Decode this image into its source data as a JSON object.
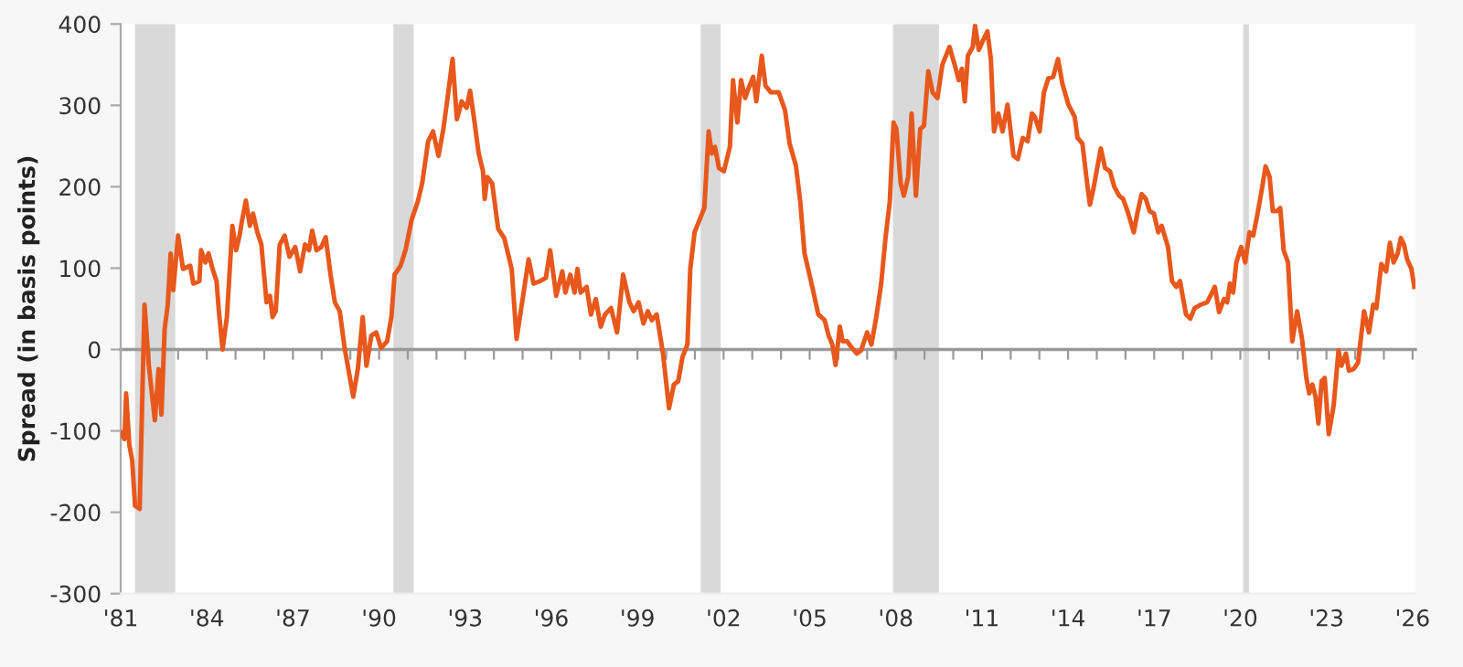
{
  "chart_data": {
    "type": "line",
    "ylabel": "Spread (in basis points)",
    "xlim": [
      1981,
      2026.1
    ],
    "ylim": [
      -300,
      400
    ],
    "yticks": [
      -300,
      -200,
      -100,
      0,
      100,
      200,
      300,
      400
    ],
    "xticks": [
      {
        "value": 1981,
        "label": "'81"
      },
      {
        "value": 1982,
        "label": null
      },
      {
        "value": 1983,
        "label": null
      },
      {
        "value": 1984,
        "label": "'84"
      },
      {
        "value": 1985,
        "label": null
      },
      {
        "value": 1986,
        "label": null
      },
      {
        "value": 1987,
        "label": "'87"
      },
      {
        "value": 1988,
        "label": null
      },
      {
        "value": 1989,
        "label": null
      },
      {
        "value": 1990,
        "label": "'90"
      },
      {
        "value": 1991,
        "label": null
      },
      {
        "value": 1992,
        "label": null
      },
      {
        "value": 1993,
        "label": "'93"
      },
      {
        "value": 1994,
        "label": null
      },
      {
        "value": 1995,
        "label": null
      },
      {
        "value": 1996,
        "label": "'96"
      },
      {
        "value": 1997,
        "label": null
      },
      {
        "value": 1998,
        "label": null
      },
      {
        "value": 1999,
        "label": "'99"
      },
      {
        "value": 2000,
        "label": null
      },
      {
        "value": 2001,
        "label": null
      },
      {
        "value": 2002,
        "label": "'02"
      },
      {
        "value": 2003,
        "label": null
      },
      {
        "value": 2004,
        "label": null
      },
      {
        "value": 2005,
        "label": "'05"
      },
      {
        "value": 2006,
        "label": null
      },
      {
        "value": 2007,
        "label": null
      },
      {
        "value": 2008,
        "label": "'08"
      },
      {
        "value": 2009,
        "label": null
      },
      {
        "value": 2010,
        "label": null
      },
      {
        "value": 2011,
        "label": "'11"
      },
      {
        "value": 2012,
        "label": null
      },
      {
        "value": 2013,
        "label": null
      },
      {
        "value": 2014,
        "label": "'14"
      },
      {
        "value": 2015,
        "label": null
      },
      {
        "value": 2016,
        "label": null
      },
      {
        "value": 2017,
        "label": "'17"
      },
      {
        "value": 2018,
        "label": null
      },
      {
        "value": 2019,
        "label": null
      },
      {
        "value": 2020,
        "label": "'20"
      },
      {
        "value": 2021,
        "label": null
      },
      {
        "value": 2022,
        "label": null
      },
      {
        "value": 2023,
        "label": "'23"
      },
      {
        "value": 2024,
        "label": null
      },
      {
        "value": 2025,
        "label": null
      },
      {
        "value": 2026,
        "label": "'26"
      }
    ],
    "bands": [
      {
        "axis": "x",
        "from": 1981.5,
        "to": 1982.9,
        "color": "#d9d9d9"
      },
      {
        "axis": "x",
        "from": 1990.5,
        "to": 1991.2,
        "color": "#d9d9d9"
      },
      {
        "axis": "x",
        "from": 2001.2,
        "to": 2001.9,
        "color": "#d9d9d9"
      },
      {
        "axis": "x",
        "from": 2007.9,
        "to": 2009.5,
        "color": "#d9d9d9"
      },
      {
        "axis": "x",
        "from": 2020.1,
        "to": 2020.3,
        "color": "#d9d9d9"
      }
    ],
    "ref_lines": [
      {
        "axis": "y",
        "value": 0,
        "color": "#999999"
      }
    ],
    "grid": false,
    "legend": false,
    "marker": "none",
    "line_style": "solid",
    "series": [
      {
        "color": "#e8581c",
        "x": [
          1981.0,
          1981.13,
          1981.19,
          1981.3,
          1981.4,
          1981.5,
          1981.66,
          1981.83,
          1981.98,
          1982.19,
          1982.32,
          1982.42,
          1982.53,
          1982.64,
          1982.74,
          1982.83,
          1983.0,
          1983.17,
          1983.42,
          1983.53,
          1983.74,
          1983.8,
          1983.95,
          1984.06,
          1984.2,
          1984.34,
          1984.42,
          1984.55,
          1984.7,
          1984.89,
          1985.02,
          1985.14,
          1985.23,
          1985.36,
          1985.5,
          1985.61,
          1985.76,
          1985.9,
          1986.08,
          1986.2,
          1986.29,
          1986.4,
          1986.54,
          1986.71,
          1986.88,
          1987.08,
          1987.25,
          1987.42,
          1987.56,
          1987.67,
          1987.82,
          1987.99,
          1988.14,
          1988.31,
          1988.46,
          1988.63,
          1988.8,
          1988.95,
          1989.1,
          1989.26,
          1989.43,
          1989.56,
          1989.73,
          1989.9,
          1990.07,
          1990.28,
          1990.43,
          1990.54,
          1990.75,
          1990.92,
          1991.13,
          1991.35,
          1991.5,
          1991.71,
          1991.88,
          1992.07,
          1992.24,
          1992.37,
          1992.56,
          1992.71,
          1992.88,
          1993.05,
          1993.17,
          1993.3,
          1993.47,
          1993.62,
          1993.68,
          1993.77,
          1993.94,
          1994.15,
          1994.36,
          1994.62,
          1994.79,
          1995.0,
          1995.21,
          1995.38,
          1995.6,
          1995.81,
          1995.96,
          1996.17,
          1996.38,
          1996.49,
          1996.66,
          1996.81,
          1996.91,
          1997.02,
          1997.23,
          1997.38,
          1997.55,
          1997.72,
          1997.87,
          1998.08,
          1998.29,
          1998.5,
          1998.72,
          1998.87,
          1999.04,
          1999.21,
          1999.36,
          1999.5,
          1999.67,
          1999.89,
          2000.1,
          2000.27,
          2000.42,
          2000.57,
          2000.74,
          2000.84,
          2000.99,
          2001.16,
          2001.33,
          2001.48,
          2001.59,
          2001.7,
          2001.84,
          2002.01,
          2002.22,
          2002.33,
          2002.48,
          2002.61,
          2002.75,
          2002.86,
          2003.03,
          2003.14,
          2003.33,
          2003.46,
          2003.65,
          2003.92,
          2004.14,
          2004.3,
          2004.52,
          2004.67,
          2004.82,
          2005.09,
          2005.3,
          2005.52,
          2005.66,
          2005.79,
          2005.9,
          2006.05,
          2006.15,
          2006.3,
          2006.47,
          2006.64,
          2006.79,
          2007.0,
          2007.15,
          2007.32,
          2007.49,
          2007.64,
          2007.79,
          2007.92,
          2008.02,
          2008.17,
          2008.28,
          2008.43,
          2008.55,
          2008.7,
          2008.85,
          2008.98,
          2009.13,
          2009.28,
          2009.45,
          2009.62,
          2009.87,
          2010.08,
          2010.19,
          2010.3,
          2010.4,
          2010.51,
          2010.68,
          2010.76,
          2010.89,
          2011.04,
          2011.19,
          2011.31,
          2011.42,
          2011.57,
          2011.72,
          2011.89,
          2012.1,
          2012.25,
          2012.42,
          2012.59,
          2012.74,
          2012.84,
          2013.01,
          2013.16,
          2013.31,
          2013.48,
          2013.65,
          2013.8,
          2014.01,
          2014.23,
          2014.33,
          2014.5,
          2014.65,
          2014.76,
          2014.88,
          2015.03,
          2015.14,
          2015.29,
          2015.46,
          2015.61,
          2015.78,
          2015.92,
          2016.07,
          2016.29,
          2016.41,
          2016.56,
          2016.71,
          2016.84,
          2016.99,
          2017.14,
          2017.26,
          2017.48,
          2017.62,
          2017.77,
          2017.9,
          2017.99,
          2018.11,
          2018.26,
          2018.41,
          2018.62,
          2018.84,
          2018.96,
          2019.11,
          2019.26,
          2019.43,
          2019.54,
          2019.64,
          2019.75,
          2019.86,
          2020.03,
          2020.17,
          2020.32,
          2020.45,
          2020.6,
          2020.75,
          2020.88,
          2021.02,
          2021.13,
          2021.28,
          2021.39,
          2021.51,
          2021.66,
          2021.81,
          2021.98,
          2022.15,
          2022.3,
          2022.4,
          2022.51,
          2022.62,
          2022.72,
          2022.83,
          2022.94,
          2023.08,
          2023.25,
          2023.42,
          2023.52,
          2023.68,
          2023.78,
          2023.95,
          2024.1,
          2024.31,
          2024.48,
          2024.63,
          2024.74,
          2024.91,
          2025.08,
          2025.21,
          2025.34,
          2025.48,
          2025.59,
          2025.7,
          2025.81,
          2025.96,
          2026.06
        ],
        "values": [
          -102,
          -110,
          -54,
          -117,
          -136,
          -192,
          -196,
          55,
          -20,
          -87,
          -24,
          -80,
          25,
          55,
          118,
          73,
          140,
          99,
          103,
          81,
          84,
          122,
          107,
          118,
          99,
          84,
          47,
          0,
          40,
          152,
          122,
          140,
          159,
          183,
          152,
          167,
          144,
          129,
          58,
          66,
          40,
          47,
          129,
          140,
          114,
          126,
          96,
          129,
          122,
          146,
          122,
          126,
          138,
          92,
          58,
          47,
          2,
          -28,
          -58,
          -24,
          40,
          -20,
          17,
          21,
          2,
          10,
          40,
          92,
          103,
          122,
          159,
          182,
          204,
          256,
          268,
          238,
          271,
          305,
          357,
          283,
          305,
          297,
          318,
          286,
          241,
          219,
          185,
          212,
          204,
          148,
          137,
          99,
          13,
          62,
          111,
          81,
          84,
          88,
          122,
          66,
          96,
          70,
          92,
          70,
          99,
          70,
          77,
          43,
          62,
          28,
          43,
          51,
          21,
          92,
          58,
          47,
          58,
          32,
          47,
          36,
          43,
          -5,
          -72,
          -43,
          -39,
          -9,
          6,
          99,
          144,
          159,
          174,
          268,
          241,
          249,
          223,
          219,
          249,
          331,
          279,
          331,
          309,
          320,
          335,
          305,
          361,
          324,
          316,
          316,
          294,
          253,
          226,
          182,
          118,
          77,
          43,
          36,
          17,
          6,
          -19,
          28,
          10,
          10,
          2,
          -5,
          -1,
          21,
          6,
          40,
          81,
          137,
          182,
          279,
          271,
          204,
          189,
          212,
          290,
          189,
          271,
          275,
          342,
          316,
          309,
          350,
          372,
          346,
          331,
          345,
          305,
          361,
          372,
          398,
          368,
          380,
          391,
          357,
          268,
          290,
          268,
          301,
          238,
          234,
          260,
          256,
          290,
          286,
          268,
          316,
          333,
          335,
          357,
          327,
          301,
          286,
          260,
          253,
          208,
          178,
          197,
          226,
          247,
          223,
          219,
          200,
          189,
          185,
          170,
          144,
          167,
          191,
          185,
          170,
          167,
          144,
          152,
          126,
          84,
          77,
          84,
          66,
          43,
          38,
          51,
          55,
          58,
          66,
          77,
          46,
          62,
          58,
          81,
          70,
          107,
          126,
          107,
          144,
          140,
          167,
          197,
          225,
          212,
          170,
          170,
          174,
          122,
          107,
          10,
          47,
          13,
          -35,
          -54,
          -43,
          -58,
          -91,
          -39,
          -35,
          -104,
          -69,
          -1,
          -20,
          -5,
          -26,
          -24,
          -16,
          47,
          21,
          55,
          51,
          105,
          96,
          131,
          107,
          118,
          137,
          129,
          111,
          99,
          77
        ]
      }
    ]
  }
}
